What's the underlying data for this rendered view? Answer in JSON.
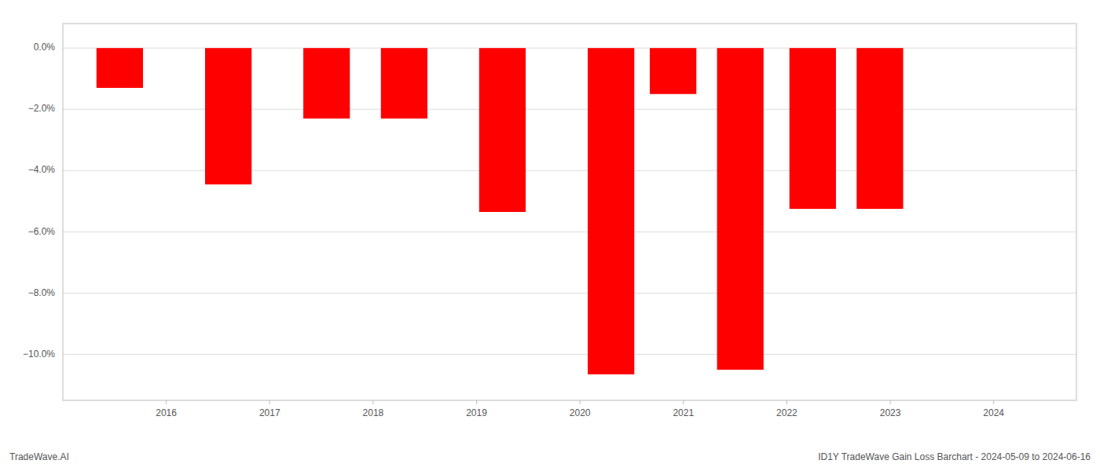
{
  "chart_data": {
    "type": "bar",
    "title": "ID1Y TradeWave Gain Loss Barchart - 2024-05-09 to 2024-06-16",
    "annotations": [
      "TradeWave.AI"
    ],
    "x": [
      2015.55,
      2016.6,
      2017.55,
      2018.3,
      2019.25,
      2020.3,
      2020.9,
      2021.55,
      2022.25,
      2022.9,
      2023.3
    ],
    "values": [
      -1.3,
      -4.45,
      -2.3,
      -2.3,
      -5.35,
      -10.65,
      -1.5,
      -10.5,
      -5.25,
      -5.25,
      -0.0
    ],
    "color": "#ff0000",
    "xlim": [
      2015.0,
      2024.8
    ],
    "xticks": [
      2016,
      2017,
      2018,
      2019,
      2020,
      2021,
      2022,
      2023,
      2024
    ],
    "ylim": [
      -11.5,
      0.8
    ],
    "yticks": [
      {
        "value": 0.0,
        "label": "0.0%"
      },
      {
        "value": -2.0,
        "label": "−2.0%"
      },
      {
        "value": -4.0,
        "label": "−4.0%"
      },
      {
        "value": -6.0,
        "label": "−6.0%"
      },
      {
        "value": -8.0,
        "label": "−8.0%"
      },
      {
        "value": -10.0,
        "label": "−10.0%"
      }
    ],
    "grid": true
  }
}
